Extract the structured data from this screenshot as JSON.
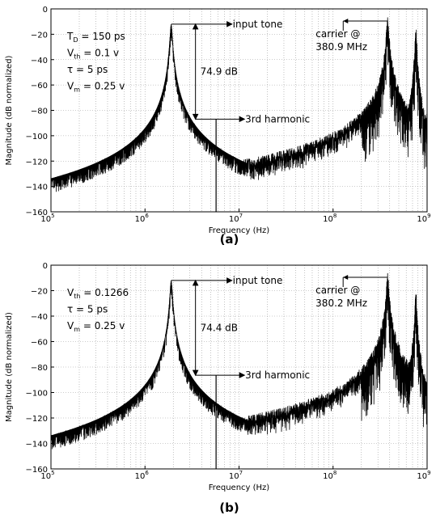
{
  "chart_data": [
    {
      "type": "line",
      "panel_label": "(a)",
      "xlabel": "Frequency (Hz)",
      "ylabel": "Magnitude (dB normalized)",
      "xscale": "log",
      "xlim": [
        100000,
        1000000000
      ],
      "ylim": [
        -160,
        0
      ],
      "xticks": [
        "10",
        "10",
        "10",
        "10",
        "10"
      ],
      "xtick_exponents": [
        "5",
        "6",
        "7",
        "8",
        "9"
      ],
      "yticks": [
        "0",
        "−20",
        "−40",
        "−60",
        "−80",
        "−100",
        "−120",
        "−140",
        "−160"
      ],
      "grid": true,
      "params": [
        {
          "sym": "T",
          "sub": "D",
          "rest": " = 150 ps"
        },
        {
          "sym": "V",
          "sub": "th",
          "rest": " = 0.1 v"
        },
        {
          "sym": "τ",
          "sub": "",
          "rest": " = 5 ps"
        },
        {
          "sym": "V",
          "sub": "m",
          "rest": " = 0.25 v"
        }
      ],
      "annotations": {
        "input_tone": "input tone",
        "third_harmonic": "3rd harmonic",
        "dynamic_range": "74.9 dB",
        "carrier_line1": "carrier @",
        "carrier_line2": "380.9 MHz"
      },
      "markers": {
        "input_tone_db": -12,
        "third_harmonic_db": -86.9,
        "carrier_hz": 380900000
      },
      "spectrum": {
        "input_tone_hz": 1900000,
        "third_harmonic_hz": 5700000,
        "carrier_hz": 380900000,
        "carrier_peak_db": -5,
        "second_carrier_hz": 760000000,
        "second_carrier_peak_db": -12,
        "noise_floor_db": [
          [
            100000,
            -156
          ],
          [
            1000000,
            -147
          ],
          [
            3000000,
            -140
          ],
          [
            10000000,
            -135
          ],
          [
            100000000,
            -120
          ],
          [
            300000000,
            -95
          ],
          [
            1000000000,
            -80
          ]
        ]
      },
      "colors": {
        "line": "#000000",
        "grid": "#9a9a9a"
      }
    },
    {
      "type": "line",
      "panel_label": "(b)",
      "xlabel": "Frequency (Hz)",
      "ylabel": "Magnitude (dB normalized)",
      "xscale": "log",
      "xlim": [
        100000,
        1000000000
      ],
      "ylim": [
        -160,
        0
      ],
      "xticks": [
        "10",
        "10",
        "10",
        "10",
        "10"
      ],
      "xtick_exponents": [
        "5",
        "6",
        "7",
        "8",
        "9"
      ],
      "yticks": [
        "0",
        "−20",
        "−40",
        "−60",
        "−80",
        "−100",
        "−120",
        "−140",
        "−160"
      ],
      "grid": true,
      "params": [
        {
          "sym": "V",
          "sub": "th",
          "rest": " = 0.1266"
        },
        {
          "sym": "τ",
          "sub": "",
          "rest": " = 5 ps"
        },
        {
          "sym": "V",
          "sub": "m",
          "rest": " = 0.25 v"
        }
      ],
      "annotations": {
        "input_tone": "input tone",
        "third_harmonic": "3rd harmonic",
        "dynamic_range": "74.4 dB",
        "carrier_line1": "carrier @",
        "carrier_line2": "380.2 MHz"
      },
      "markers": {
        "input_tone_db": -12,
        "third_harmonic_db": -86.4,
        "carrier_hz": 380200000
      },
      "spectrum": {
        "input_tone_hz": 1900000,
        "third_harmonic_hz": 5700000,
        "spur_hz": 580000,
        "spur_db": -123,
        "carrier_hz": 380200000,
        "carrier_peak_db": -5,
        "second_carrier_hz": 760000000,
        "second_carrier_peak_db": -17,
        "noise_floor_db": [
          [
            100000,
            -148
          ],
          [
            1000000,
            -147
          ],
          [
            3000000,
            -140
          ],
          [
            10000000,
            -150
          ],
          [
            100000000,
            -145
          ],
          [
            300000000,
            -125
          ],
          [
            1000000000,
            -120
          ]
        ]
      },
      "colors": {
        "line": "#000000",
        "grid": "#9a9a9a"
      }
    }
  ]
}
